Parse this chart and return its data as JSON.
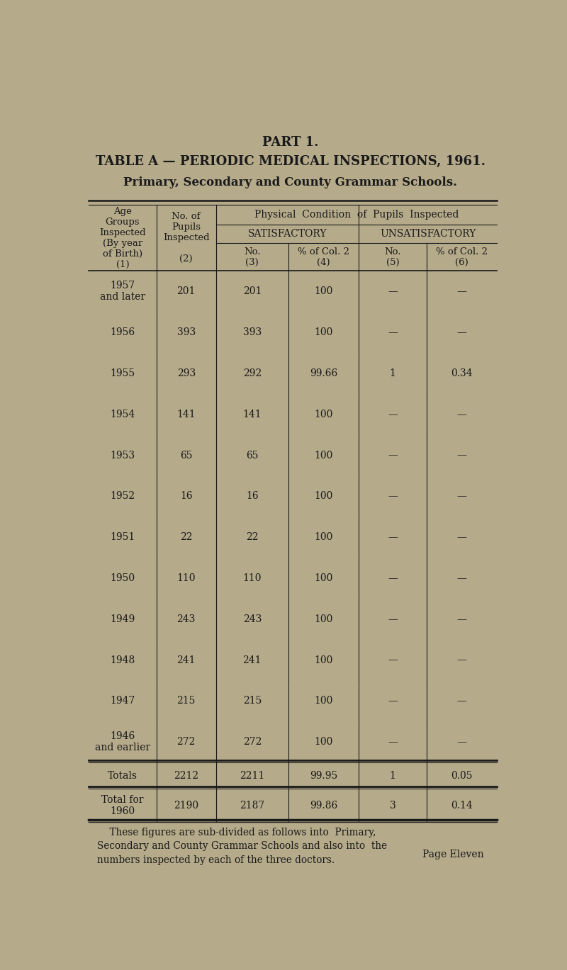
{
  "part_title": "PART 1.",
  "table_title": "TABLE A — PERIODIC MEDICAL INSPECTIONS, 1961.",
  "subtitle": "Primary, Secondary and County Grammar Schools.",
  "bg_color": "#b5aa8a",
  "text_color": "#1a1a1a",
  "rows": [
    [
      "1957\nand later",
      "201",
      "201",
      "100",
      "—",
      "—"
    ],
    [
      "1956",
      "393",
      "393",
      "100",
      "—",
      "—"
    ],
    [
      "1955",
      "293",
      "292",
      "99.66",
      "1",
      "0.34"
    ],
    [
      "1954",
      "141",
      "141",
      "100",
      "—",
      "—"
    ],
    [
      "1953",
      "65",
      "65",
      "100",
      "—",
      "—"
    ],
    [
      "1952",
      "16",
      "16",
      "100",
      "—",
      "—"
    ],
    [
      "1951",
      "22",
      "22",
      "100",
      "—",
      "—"
    ],
    [
      "1950",
      "110",
      "110",
      "100",
      "—",
      "—"
    ],
    [
      "1949",
      "243",
      "243",
      "100",
      "—",
      "—"
    ],
    [
      "1948",
      "241",
      "241",
      "100",
      "—",
      "—"
    ],
    [
      "1947",
      "215",
      "215",
      "100",
      "—",
      "—"
    ],
    [
      "1946\nand earlier",
      "272",
      "272",
      "100",
      "—",
      "—"
    ]
  ],
  "totals_row": [
    "Totals",
    "2212",
    "2211",
    "99.95",
    "1",
    "0.05"
  ],
  "total1960_row": [
    "Total for\n1960",
    "2190",
    "2187",
    "99.86",
    "3",
    "0.14"
  ],
  "footer_line1": "    These figures are sub-divided as follows into  Primary,",
  "footer_line2": "Secondary and County Grammar Schools and also into  the",
  "footer_line3": "numbers inspected by each of the three doctors.",
  "page_label": "Page Eleven"
}
